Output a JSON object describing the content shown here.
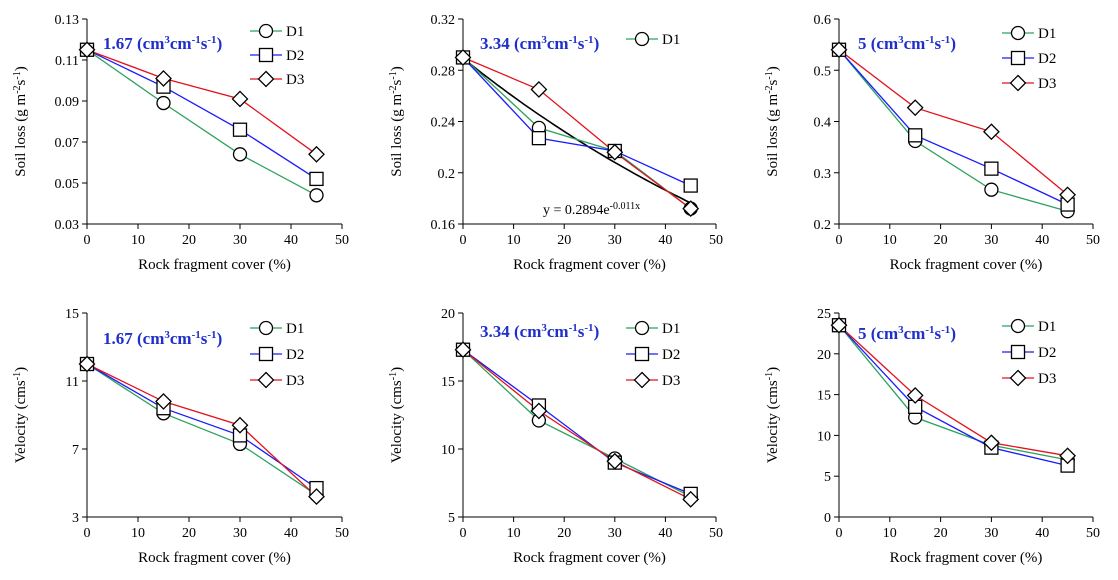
{
  "legend_labels": [
    "D1",
    "D2",
    "D3"
  ],
  "colors": {
    "D1": "#2ca25f",
    "D2": "#1a1aff",
    "D3": "#e3121b",
    "trend": "#000000",
    "rate_label": "#1f2fcc"
  },
  "chart_data": [
    {
      "type": "line",
      "id": "p1",
      "rate_label": {
        "base": "1.67 (cm",
        "sup1": "3",
        "mid": "cm",
        "sup2": "-1",
        "mid2": "s",
        "sup3": "-1",
        "end": ")"
      },
      "xlabel": "Rock fragment cover (%)",
      "ylabel": {
        "base": "Soil loss (g m",
        "sup1": "-2",
        "mid": "s",
        "sup2": "-1",
        "end": ")"
      },
      "xlim": [
        0,
        50
      ],
      "ylim": [
        0.03,
        0.13
      ],
      "xticks": [
        0,
        10,
        20,
        30,
        40,
        50
      ],
      "yticks": [
        "0.03",
        "0.05",
        "0.07",
        "0.09",
        "0.11",
        "0.13"
      ],
      "x": [
        0,
        15,
        30,
        45
      ],
      "series": [
        {
          "name": "D1",
          "marker": "circle",
          "values": [
            0.115,
            0.089,
            0.064,
            0.044
          ]
        },
        {
          "name": "D2",
          "marker": "square",
          "values": [
            0.115,
            0.097,
            0.076,
            0.052
          ]
        },
        {
          "name": "D3",
          "marker": "diamond",
          "values": [
            0.115,
            0.101,
            0.091,
            0.064
          ]
        }
      ],
      "legend_series": [
        "D1",
        "D2",
        "D3"
      ]
    },
    {
      "type": "line",
      "id": "p2",
      "rate_label": {
        "base": "3.34 (cm",
        "sup1": "3",
        "mid": "cm",
        "sup2": "-1",
        "mid2": "s",
        "sup3": "-1",
        "end": ")"
      },
      "xlabel": "Rock fragment cover (%)",
      "ylabel": {
        "base": "Soil loss (g m",
        "sup1": "-2",
        "mid": "s",
        "sup2": "-1",
        "end": ")"
      },
      "xlim": [
        0,
        50
      ],
      "ylim": [
        0.16,
        0.32
      ],
      "xticks": [
        0,
        10,
        20,
        30,
        40,
        50
      ],
      "yticks": [
        "0.16",
        "0.2",
        "0.24",
        "0.28",
        "0.32"
      ],
      "x": [
        0,
        15,
        30,
        45
      ],
      "series": [
        {
          "name": "D1",
          "marker": "circle",
          "values": [
            0.29,
            0.235,
            0.217,
            0.172
          ]
        },
        {
          "name": "D2",
          "marker": "square",
          "values": [
            0.29,
            0.227,
            0.217,
            0.19
          ]
        },
        {
          "name": "D3",
          "marker": "diamond",
          "values": [
            0.29,
            0.265,
            0.216,
            0.172
          ]
        }
      ],
      "legend_series": [
        "D1"
      ],
      "trendline": {
        "a": 0.2894,
        "b": -0.011,
        "label": "y = 0.2894e",
        "label_sup": "-0.011x"
      }
    },
    {
      "type": "line",
      "id": "p3",
      "rate_label": {
        "base": "5 (cm",
        "sup1": "3",
        "mid": "cm",
        "sup2": "-1",
        "mid2": "s",
        "sup3": "-1",
        "end": ")"
      },
      "xlabel": "Rock fragment cover (%)",
      "ylabel": {
        "base": "Soil loss (g m",
        "sup1": "-2",
        "mid": "s",
        "sup2": "-1",
        "end": ")"
      },
      "xlim": [
        0,
        50
      ],
      "ylim": [
        0.2,
        0.6
      ],
      "xticks": [
        0,
        10,
        20,
        30,
        40,
        50
      ],
      "yticks": [
        "0.2",
        "0.3",
        "0.4",
        "0.5",
        "0.6"
      ],
      "x": [
        0,
        15,
        30,
        45
      ],
      "series": [
        {
          "name": "D1",
          "marker": "circle",
          "values": [
            0.54,
            0.362,
            0.267,
            0.225
          ]
        },
        {
          "name": "D2",
          "marker": "square",
          "values": [
            0.54,
            0.373,
            0.308,
            0.238
          ]
        },
        {
          "name": "D3",
          "marker": "diamond",
          "values": [
            0.54,
            0.427,
            0.38,
            0.257
          ]
        }
      ],
      "legend_series": [
        "D1",
        "D2",
        "D3"
      ]
    },
    {
      "type": "line",
      "id": "p4",
      "rate_label": {
        "base": "1.67 (cm",
        "sup1": "3",
        "mid": "cm",
        "sup2": "-1",
        "mid2": "s",
        "sup3": "-1",
        "end": ")"
      },
      "xlabel": "Rock fragment cover (%)",
      "ylabel": {
        "base": "Velocity (cms",
        "sup1": "-1",
        "end": ")"
      },
      "xlim": [
        0,
        50
      ],
      "ylim": [
        3,
        15
      ],
      "xticks": [
        0,
        10,
        20,
        30,
        40,
        50
      ],
      "yticks": [
        "3",
        "7",
        "11",
        "15"
      ],
      "x": [
        0,
        15,
        30,
        45
      ],
      "series": [
        {
          "name": "D1",
          "marker": "circle",
          "values": [
            12,
            9.1,
            7.3,
            4.3
          ]
        },
        {
          "name": "D2",
          "marker": "square",
          "values": [
            12,
            9.4,
            7.8,
            4.7
          ]
        },
        {
          "name": "D3",
          "marker": "diamond",
          "values": [
            12,
            9.8,
            8.4,
            4.2
          ]
        }
      ],
      "legend_series": [
        "D1",
        "D2",
        "D3"
      ]
    },
    {
      "type": "line",
      "id": "p5",
      "rate_label": {
        "base": "3.34 (cm",
        "sup1": "3",
        "mid": "cm",
        "sup2": "-1",
        "mid2": "s",
        "sup3": "-1",
        "end": ")"
      },
      "xlabel": "Rock fragment cover (%)",
      "ylabel": {
        "base": "Velocity (cms",
        "sup1": "-1",
        "end": ")"
      },
      "xlim": [
        0,
        50
      ],
      "ylim": [
        5,
        20
      ],
      "xticks": [
        0,
        10,
        20,
        30,
        40,
        50
      ],
      "yticks": [
        "5",
        "10",
        "15",
        "20"
      ],
      "x": [
        0,
        15,
        30,
        45
      ],
      "series": [
        {
          "name": "D1",
          "marker": "circle",
          "values": [
            17.3,
            12.1,
            9.3,
            6.5
          ]
        },
        {
          "name": "D2",
          "marker": "square",
          "values": [
            17.3,
            13.2,
            9.0,
            6.7
          ]
        },
        {
          "name": "D3",
          "marker": "diamond",
          "values": [
            17.3,
            12.8,
            9.1,
            6.3
          ]
        }
      ],
      "legend_series": [
        "D1",
        "D2",
        "D3"
      ]
    },
    {
      "type": "line",
      "id": "p6",
      "rate_label": {
        "base": "5 (cm",
        "sup1": "3",
        "mid": "cm",
        "sup2": "-1",
        "mid2": "s",
        "sup3": "-1",
        "end": ")"
      },
      "xlabel": "Rock fragment cover (%)",
      "ylabel": {
        "base": "Velocity (cms",
        "sup1": "-1",
        "end": ")"
      },
      "xlim": [
        0,
        50
      ],
      "ylim": [
        0,
        25
      ],
      "xticks": [
        0,
        10,
        20,
        30,
        40,
        50
      ],
      "yticks": [
        "0",
        "5",
        "10",
        "15",
        "20",
        "25"
      ],
      "x": [
        0,
        15,
        30,
        45
      ],
      "series": [
        {
          "name": "D1",
          "marker": "circle",
          "values": [
            23.5,
            12.2,
            8.8,
            7.0
          ]
        },
        {
          "name": "D2",
          "marker": "square",
          "values": [
            23.5,
            13.5,
            8.5,
            6.3
          ]
        },
        {
          "name": "D3",
          "marker": "diamond",
          "values": [
            23.5,
            14.9,
            9.1,
            7.5
          ]
        }
      ],
      "legend_series": [
        "D1",
        "D2",
        "D3"
      ]
    }
  ]
}
